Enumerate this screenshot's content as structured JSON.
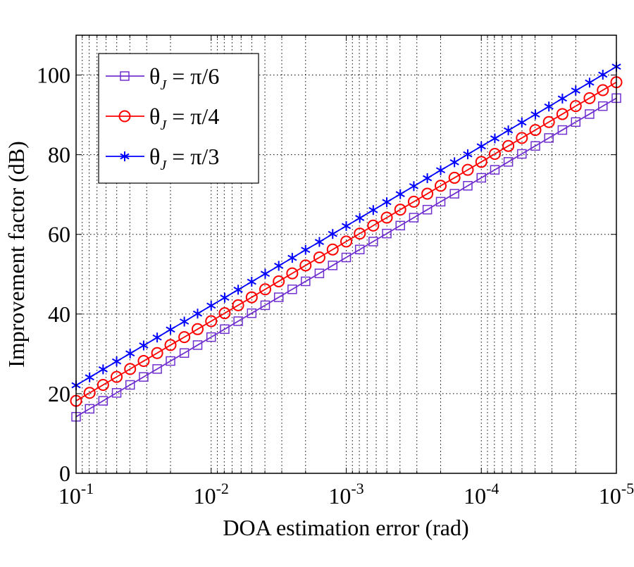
{
  "chart_data": {
    "type": "line",
    "xlabel": "DOA estimation error (rad)",
    "ylabel": "Improvement factor (dB)",
    "xscale": "log",
    "x_reversed": true,
    "xlim": [
      0.1,
      1e-05
    ],
    "ylim": [
      0,
      110
    ],
    "grid": true,
    "legend_position": "top-left",
    "x_ticks": [
      {
        "value": 0.1,
        "base": "10",
        "exp": "-1"
      },
      {
        "value": 0.01,
        "base": "10",
        "exp": "-2"
      },
      {
        "value": 0.001,
        "base": "10",
        "exp": "-3"
      },
      {
        "value": 0.0001,
        "base": "10",
        "exp": "-4"
      },
      {
        "value": 1e-05,
        "base": "10",
        "exp": "-5"
      }
    ],
    "y_ticks": [
      "0",
      "20",
      "40",
      "60",
      "80",
      "100"
    ],
    "x": [
      0.1,
      0.0794,
      0.0631,
      0.0501,
      0.0398,
      0.0316,
      0.0251,
      0.02,
      0.0158,
      0.0126,
      0.01,
      0.00794,
      0.00631,
      0.00501,
      0.00398,
      0.00316,
      0.00251,
      0.002,
      0.00158,
      0.00126,
      0.001,
      0.000794,
      0.000631,
      0.000501,
      0.000398,
      0.000316,
      0.000251,
      0.0002,
      0.000158,
      0.000126,
      0.0001,
      7.94e-05,
      6.31e-05,
      5.01e-05,
      3.98e-05,
      3.16e-05,
      2.51e-05,
      2e-05,
      1.58e-05,
      1.26e-05,
      1e-05
    ],
    "series": [
      {
        "symbol": "θ",
        "sub": "J",
        "value": " =  π/6",
        "color": "#7030d0",
        "marker": "square",
        "values": [
          14.2,
          16.2,
          18.2,
          20.2,
          22.2,
          24.2,
          26.2,
          28.2,
          30.2,
          32.2,
          34.2,
          36.2,
          38.2,
          40.2,
          42.2,
          44.2,
          46.2,
          48.2,
          50.2,
          52.2,
          54.2,
          56.2,
          58.2,
          60.2,
          62.2,
          64.2,
          66.2,
          68.2,
          70.2,
          72.2,
          74.2,
          76.2,
          78.2,
          80.2,
          82.2,
          84.2,
          86.2,
          88.2,
          90.2,
          92.2,
          94.2
        ]
      },
      {
        "symbol": "θ",
        "sub": "J",
        "value": " =  π/4",
        "color": "#ff0000",
        "marker": "circle",
        "values": [
          18.2,
          20.2,
          22.2,
          24.2,
          26.2,
          28.2,
          30.2,
          32.2,
          34.2,
          36.2,
          38.2,
          40.2,
          42.2,
          44.2,
          46.2,
          48.2,
          50.2,
          52.2,
          54.2,
          56.2,
          58.2,
          60.2,
          62.2,
          64.2,
          66.2,
          68.2,
          70.2,
          72.2,
          74.2,
          76.2,
          78.2,
          80.2,
          82.2,
          84.2,
          86.2,
          88.2,
          90.2,
          92.2,
          94.2,
          96.2,
          98.2
        ]
      },
      {
        "symbol": "θ",
        "sub": "J",
        "value": " =  π/3",
        "color": "#0000ff",
        "marker": "asterisk",
        "values": [
          22.1,
          24.1,
          26.1,
          28.1,
          30.1,
          32.1,
          34.1,
          36.1,
          38.1,
          40.1,
          42.1,
          44.1,
          46.1,
          48.1,
          50.1,
          52.1,
          54.1,
          56.1,
          58.1,
          60.1,
          62.1,
          64.1,
          66.1,
          68.1,
          70.1,
          72.1,
          74.1,
          76.1,
          78.1,
          80.1,
          82.1,
          84.1,
          86.1,
          88.1,
          90.1,
          92.1,
          94.1,
          96.1,
          98.1,
          100.1,
          102.1
        ]
      }
    ]
  }
}
